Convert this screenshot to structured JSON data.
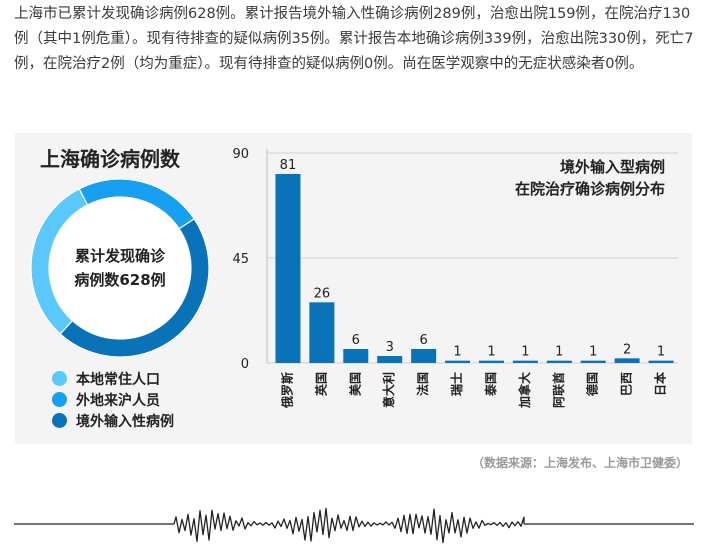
{
  "intro": {
    "text": "上海市已累计发现确诊病例628例。累计报告境外输入性确诊病例289例，治愈出院159例，在院治疗130例（其中1例危重）。现有待排查的疑似病例35例。累计报告本地确诊病例339例，治愈出院330例，死亡7例，在院治疗2例（均为重症）。现有待排查的疑似病例0例。尚在医学观察中的无症状感染者0例。"
  },
  "donut": {
    "title": "上海确诊病例数",
    "center_line1": "累计发现确诊",
    "center_line2": "病例数628例"
  },
  "legend": [
    {
      "label": "本地常住人口",
      "color": "#5ac8fa"
    },
    {
      "label": "外地来沪人员",
      "color": "#18a0f0"
    },
    {
      "label": "境外输入性病例",
      "color": "#0a72b8"
    }
  ],
  "bar_chart_title": {
    "line1": "境外输入型病例",
    "line2": "在院治疗确诊病例分布"
  },
  "source": "（数据来源：上海发布、上海市卫健委）",
  "chart_data": [
    {
      "type": "pie",
      "title": "上海确诊病例数",
      "categories": [
        "本地常住人口",
        "外地来沪人员",
        "境外输入性病例"
      ],
      "values": [
        193,
        146,
        289
      ],
      "colors": [
        "#5ac8fa",
        "#18a0f0",
        "#0a72b8"
      ]
    },
    {
      "type": "bar",
      "title": "境外输入型病例 在院治疗确诊病例分布",
      "categories": [
        "俄罗斯",
        "英国",
        "美国",
        "意大利",
        "法国",
        "瑞士",
        "泰国",
        "加拿大",
        "阿联酋",
        "德国",
        "巴西",
        "日本"
      ],
      "values": [
        81,
        26,
        6,
        3,
        6,
        1,
        1,
        1,
        1,
        1,
        2,
        1
      ],
      "yticks": [
        0,
        45,
        90
      ],
      "ylim": [
        0,
        90
      ],
      "color": "#0a72b8",
      "grid": true
    }
  ]
}
